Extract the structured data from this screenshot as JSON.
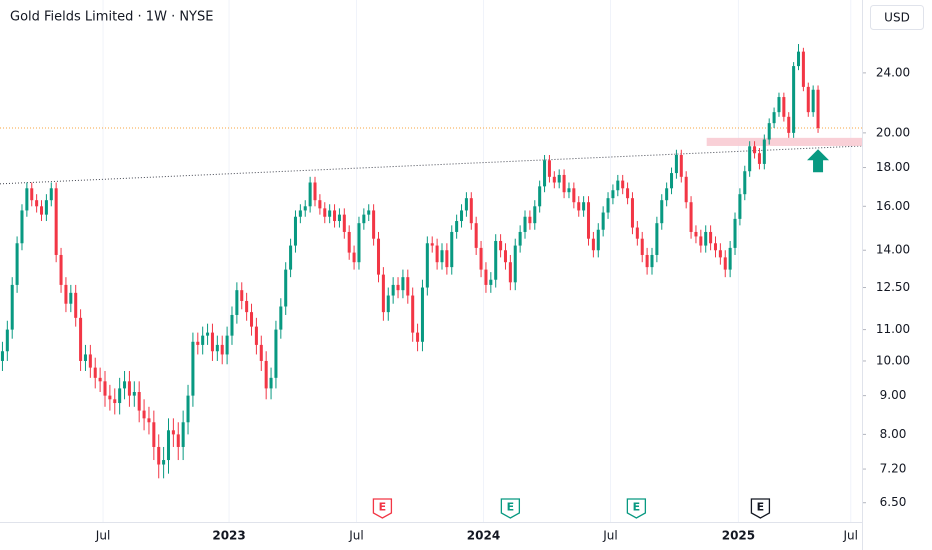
{
  "chart_data": {
    "type": "candlestick",
    "title": "Gold Fields Limited · 1W · NYSE",
    "currency": "USD",
    "log_scale": true,
    "up_color": "#089981",
    "down_color": "#f23645",
    "open": [
      10.0,
      10.3,
      11.0,
      12.6,
      14.3,
      15.8,
      16.9,
      16.3,
      16.0,
      15.6,
      16.3,
      16.9,
      13.8,
      12.6,
      11.9,
      12.3,
      11.4,
      10.0,
      10.2,
      9.8,
      9.5,
      9.4,
      9.0,
      8.9,
      8.8,
      9.2,
      9.4,
      9.0,
      9.1,
      8.6,
      8.4,
      8.3,
      7.7,
      7.3,
      7.4,
      8.1,
      8.0,
      7.7,
      8.3,
      9.0,
      10.6,
      10.5,
      10.8,
      10.9,
      10.3,
      10.5,
      10.2,
      10.8,
      11.5,
      12.4,
      12.0,
      11.6,
      11.1,
      10.5,
      10.0,
      9.2,
      9.5,
      11.0,
      11.8,
      13.2,
      14.2,
      15.5,
      15.8,
      16.0,
      17.2,
      16.3,
      15.9,
      15.5,
      15.8,
      15.3,
      15.6,
      14.8,
      13.9,
      13.5,
      15.2,
      15.6,
      15.8,
      14.5,
      13.0,
      11.6,
      12.2,
      12.6,
      12.4,
      12.9,
      12.2,
      10.9,
      10.6,
      12.5,
      14.3,
      14.2,
      13.5,
      14.0,
      13.3,
      14.8,
      15.3,
      15.8,
      16.4,
      15.2,
      14.1,
      13.2,
      12.6,
      12.8,
      14.4,
      14.0,
      13.5,
      12.7,
      14.2,
      14.8,
      15.5,
      15.2,
      16.0,
      17.0,
      18.4,
      17.5,
      17.2,
      17.6,
      16.7,
      16.9,
      16.2,
      15.8,
      16.2,
      14.5,
      14.0,
      14.9,
      15.7,
      16.4,
      16.8,
      17.3,
      16.9,
      16.4,
      15.0,
      14.5,
      13.8,
      13.3,
      13.8,
      15.2,
      16.3,
      16.9,
      17.7,
      18.7,
      17.5,
      16.2,
      14.8,
      14.6,
      14.2,
      14.8,
      14.3,
      14.0,
      13.7,
      13.2,
      14.1,
      15.4,
      16.6,
      17.8,
      19.2,
      18.8,
      18.2,
      19.6,
      20.6,
      21.3,
      22.3,
      21.0,
      20.0,
      24.5,
      25.6,
      23.0,
      21.3,
      22.8
    ],
    "high": [
      10.6,
      11.3,
      12.9,
      14.6,
      16.1,
      17.2,
      17.2,
      16.6,
      16.3,
      16.6,
      17.2,
      17.2,
      14.1,
      12.9,
      12.6,
      12.6,
      11.7,
      10.5,
      10.5,
      10.1,
      9.8,
      9.7,
      9.3,
      9.2,
      9.5,
      9.7,
      9.7,
      9.4,
      9.4,
      8.9,
      8.7,
      8.6,
      8.0,
      7.7,
      8.4,
      8.4,
      8.3,
      8.6,
      9.3,
      10.9,
      10.9,
      11.1,
      11.2,
      11.2,
      10.8,
      10.8,
      11.1,
      11.8,
      12.7,
      12.7,
      12.3,
      11.9,
      11.4,
      10.8,
      10.3,
      9.8,
      11.3,
      12.1,
      13.5,
      14.5,
      15.8,
      16.1,
      16.3,
      17.5,
      17.5,
      16.6,
      16.2,
      16.1,
      16.1,
      15.9,
      15.9,
      15.1,
      14.2,
      15.5,
      15.9,
      16.1,
      16.1,
      14.8,
      13.3,
      12.5,
      12.9,
      12.9,
      13.2,
      13.2,
      12.5,
      11.2,
      12.8,
      14.6,
      14.6,
      14.5,
      14.3,
      14.3,
      15.1,
      15.6,
      16.1,
      16.7,
      16.7,
      15.5,
      14.4,
      13.5,
      13.1,
      14.7,
      14.7,
      14.3,
      13.8,
      14.5,
      15.1,
      15.8,
      15.8,
      16.3,
      17.3,
      18.7,
      18.7,
      17.8,
      17.9,
      17.9,
      17.2,
      17.2,
      16.5,
      16.5,
      16.5,
      14.8,
      15.2,
      16.0,
      16.7,
      17.1,
      17.6,
      17.6,
      17.2,
      16.7,
      15.3,
      14.8,
      14.1,
      14.1,
      15.5,
      16.6,
      17.2,
      18.0,
      19.0,
      19.0,
      17.8,
      16.5,
      15.1,
      14.9,
      15.1,
      15.1,
      14.6,
      14.3,
      14.0,
      14.4,
      15.7,
      16.9,
      18.1,
      19.5,
      19.5,
      19.1,
      19.9,
      20.9,
      21.6,
      22.6,
      22.6,
      21.3,
      24.8,
      26.2,
      25.9,
      23.3,
      23.1,
      23.1
    ],
    "low": [
      9.7,
      10.0,
      10.7,
      12.3,
      14.0,
      15.5,
      16.0,
      15.7,
      15.3,
      15.3,
      16.0,
      13.5,
      12.3,
      11.6,
      11.6,
      11.1,
      9.7,
      9.7,
      9.5,
      9.2,
      9.1,
      8.7,
      8.6,
      8.5,
      8.5,
      8.9,
      8.7,
      8.7,
      8.3,
      8.1,
      8.0,
      7.4,
      7.0,
      7.0,
      7.1,
      7.7,
      7.4,
      7.4,
      8.0,
      8.7,
      10.2,
      10.2,
      10.5,
      10.0,
      10.0,
      9.9,
      9.9,
      10.5,
      11.2,
      11.7,
      11.3,
      10.8,
      10.2,
      9.7,
      8.9,
      8.9,
      9.2,
      10.7,
      11.5,
      12.9,
      13.9,
      15.2,
      15.5,
      15.7,
      16.0,
      15.6,
      15.2,
      15.2,
      15.0,
      15.0,
      14.5,
      13.6,
      13.2,
      13.2,
      14.9,
      15.3,
      14.2,
      12.7,
      11.3,
      11.3,
      11.9,
      12.1,
      12.1,
      11.9,
      10.6,
      10.3,
      10.3,
      12.2,
      13.9,
      13.2,
      13.2,
      13.0,
      13.0,
      14.5,
      15.0,
      15.5,
      14.9,
      13.8,
      12.9,
      12.3,
      12.3,
      12.5,
      13.7,
      13.2,
      12.4,
      12.4,
      13.9,
      14.5,
      14.9,
      14.9,
      15.7,
      16.7,
      17.2,
      16.9,
      16.9,
      16.4,
      16.4,
      15.9,
      15.5,
      15.5,
      14.2,
      13.7,
      13.7,
      14.6,
      15.4,
      16.1,
      16.5,
      16.6,
      16.1,
      14.7,
      14.2,
      13.5,
      13.0,
      13.0,
      13.5,
      14.9,
      16.0,
      16.6,
      17.4,
      17.2,
      15.9,
      14.5,
      14.3,
      13.9,
      13.9,
      14.0,
      13.7,
      13.4,
      12.9,
      12.9,
      13.8,
      15.1,
      16.3,
      17.5,
      18.5,
      17.9,
      17.9,
      19.3,
      20.3,
      21.0,
      20.7,
      19.7,
      19.7,
      24.2,
      22.7,
      21.0,
      21.0,
      20.0
    ],
    "close": [
      10.3,
      11.0,
      12.6,
      14.3,
      15.8,
      16.9,
      16.3,
      16.0,
      15.6,
      16.3,
      16.9,
      13.8,
      12.6,
      11.9,
      12.3,
      11.4,
      10.0,
      10.2,
      9.8,
      9.5,
      9.4,
      9.0,
      8.9,
      8.8,
      9.2,
      9.4,
      9.0,
      9.1,
      8.6,
      8.4,
      8.3,
      7.7,
      7.3,
      7.4,
      8.1,
      8.0,
      7.7,
      8.3,
      9.0,
      10.6,
      10.5,
      10.8,
      10.9,
      10.3,
      10.5,
      10.2,
      10.8,
      11.5,
      12.4,
      12.0,
      11.6,
      11.1,
      10.5,
      10.0,
      9.2,
      9.5,
      11.0,
      11.8,
      13.2,
      14.2,
      15.5,
      15.8,
      16.0,
      17.2,
      16.3,
      15.9,
      15.5,
      15.8,
      15.3,
      15.6,
      14.8,
      13.9,
      13.5,
      15.2,
      15.6,
      15.8,
      14.5,
      13.0,
      11.6,
      12.2,
      12.6,
      12.4,
      12.9,
      12.2,
      10.9,
      10.6,
      12.5,
      14.3,
      14.2,
      13.5,
      14.0,
      13.3,
      14.8,
      15.3,
      15.8,
      16.4,
      15.2,
      14.1,
      13.2,
      12.6,
      12.8,
      14.4,
      14.0,
      13.5,
      12.7,
      14.2,
      14.8,
      15.5,
      15.2,
      16.0,
      17.0,
      18.4,
      17.5,
      17.2,
      17.6,
      16.7,
      16.9,
      16.2,
      15.8,
      16.2,
      14.5,
      14.0,
      14.9,
      15.7,
      16.4,
      16.8,
      17.3,
      16.9,
      16.4,
      15.0,
      14.5,
      13.8,
      13.3,
      13.8,
      15.2,
      16.3,
      16.9,
      17.7,
      18.7,
      17.5,
      16.2,
      14.8,
      14.6,
      14.2,
      14.8,
      14.3,
      14.0,
      13.7,
      13.2,
      14.1,
      15.4,
      16.6,
      17.8,
      19.2,
      18.8,
      18.2,
      19.6,
      20.6,
      21.3,
      22.3,
      21.0,
      20.0,
      24.5,
      25.6,
      23.0,
      21.3,
      22.8,
      20.3
    ],
    "xlim": [
      -0.5,
      176
    ],
    "xticks": [
      {
        "value": 20.6,
        "label": "Jul"
      },
      {
        "value": 46.4,
        "label": "2023"
      },
      {
        "value": 72.5,
        "label": "Jul"
      },
      {
        "value": 98.5,
        "label": "2024"
      },
      {
        "value": 124.5,
        "label": "Jul"
      },
      {
        "value": 150.7,
        "label": "2025"
      },
      {
        "value": 173.7,
        "label": "Jul"
      }
    ],
    "xgrid": true,
    "ylim": [
      6.13,
      29.95
    ],
    "yticks": [
      {
        "value": 24,
        "label": "24.00"
      },
      {
        "value": 20,
        "label": "20.00"
      },
      {
        "value": 18,
        "label": "18.00"
      },
      {
        "value": 16,
        "label": "16.00"
      },
      {
        "value": 14,
        "label": "14.00"
      },
      {
        "value": 12.5,
        "label": "12.50"
      },
      {
        "value": 11,
        "label": "11.00"
      },
      {
        "value": 10,
        "label": "10.00"
      },
      {
        "value": 9,
        "label": "9.00"
      },
      {
        "value": 8,
        "label": "8.00"
      },
      {
        "value": 7.2,
        "label": "7.20"
      },
      {
        "value": 6.5,
        "label": "6.50"
      }
    ],
    "price_line": {
      "value": 20.3,
      "color": "#f7a440"
    },
    "trendline": {
      "x": [
        -0.5,
        176
      ],
      "y": [
        17.13,
        19.22
      ]
    },
    "zone": {
      "x": [
        144.2,
        176
      ],
      "y": [
        19.22,
        19.7
      ],
      "color": "#f8c8d0"
    },
    "arrow": {
      "x": 167,
      "y": 18.4,
      "color": "#089981"
    },
    "earnings": [
      {
        "x": 77.8,
        "label": "E",
        "color": "#f23645"
      },
      {
        "x": 104.0,
        "label": "E",
        "color": "#089981"
      },
      {
        "x": 129.8,
        "label": "E",
        "color": "#089981"
      },
      {
        "x": 155.2,
        "label": "E",
        "color": "#131722"
      }
    ]
  }
}
